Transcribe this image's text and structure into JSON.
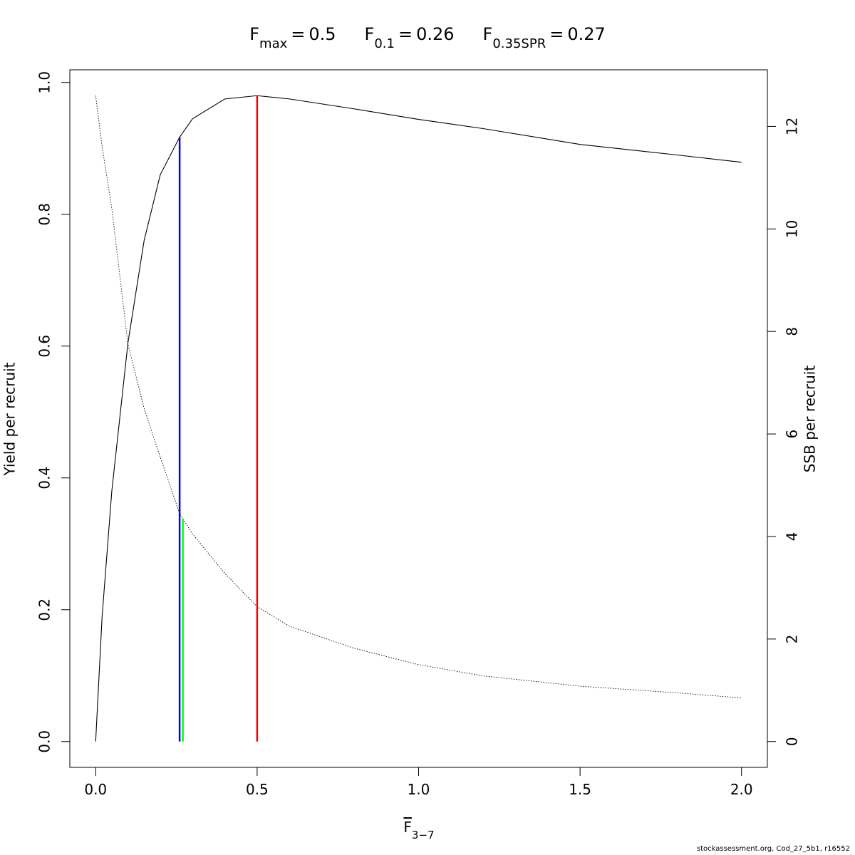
{
  "chart_data": {
    "type": "line",
    "reference_lines": [
      {
        "symbol": "F",
        "subscript": "max",
        "operator": "=",
        "value": 0.5,
        "color": "#ff0000",
        "axis": "y"
      },
      {
        "symbol": "F",
        "subscript": "0.1",
        "operator": "=",
        "value": 0.26,
        "color": "#0000ff",
        "axis": "y"
      },
      {
        "symbol": "F",
        "subscript": "0.35SPR",
        "operator": "=",
        "value": 0.27,
        "color": "#00ff00",
        "axis": "y2"
      }
    ],
    "xlabel": {
      "text": "F",
      "subscript": "3−7",
      "overline": true
    },
    "ylabel": "Yield per recruit",
    "y2label": "SSB per recruit",
    "footer": "stockassessment.org, Cod_27_5b1, r16552",
    "x": [
      0,
      0.02,
      0.05,
      0.1,
      0.15,
      0.2,
      0.26,
      0.3,
      0.4,
      0.5,
      0.6,
      0.8,
      1.0,
      1.2,
      1.5,
      1.8,
      2.0
    ],
    "series": [
      {
        "name": "Yield per recruit",
        "color": "#000000",
        "dashed": false,
        "values": [
          0,
          0.19,
          0.38,
          0.605,
          0.76,
          0.86,
          0.917,
          0.945,
          0.975,
          0.98,
          0.975,
          0.96,
          0.944,
          0.93,
          0.906,
          0.89,
          0.879
        ]
      },
      {
        "name": "SSB per recruit",
        "color": "#000000",
        "dashed": true,
        "axis": "y2",
        "values": [
          12.6,
          11.6,
          10.4,
          7.75,
          6.5,
          5.55,
          4.45,
          4.05,
          3.28,
          2.63,
          2.25,
          1.82,
          1.5,
          1.28,
          1.08,
          0.95,
          0.85
        ]
      }
    ],
    "xlim": [
      -0.08,
      2.08
    ],
    "xticks": [
      {
        "value": 0,
        "label": "0.0"
      },
      {
        "value": 0.5,
        "label": "0.5"
      },
      {
        "value": 1,
        "label": "1.0"
      },
      {
        "value": 1.5,
        "label": "1.5"
      },
      {
        "value": 2,
        "label": "2.0"
      }
    ],
    "ylim": [
      -0.0392,
      1.0192
    ],
    "yticks": [
      {
        "value": 0,
        "label": "0.0"
      },
      {
        "value": 0.2,
        "label": "0.2"
      },
      {
        "value": 0.4,
        "label": "0.4"
      },
      {
        "value": 0.6,
        "label": "0.6"
      },
      {
        "value": 0.8,
        "label": "0.8"
      },
      {
        "value": 1,
        "label": "1.0"
      }
    ],
    "y2lim": [
      -0.504,
      13.104
    ],
    "y2ticks": [
      0,
      2,
      4,
      6,
      8,
      10,
      12
    ],
    "grid": false
  }
}
